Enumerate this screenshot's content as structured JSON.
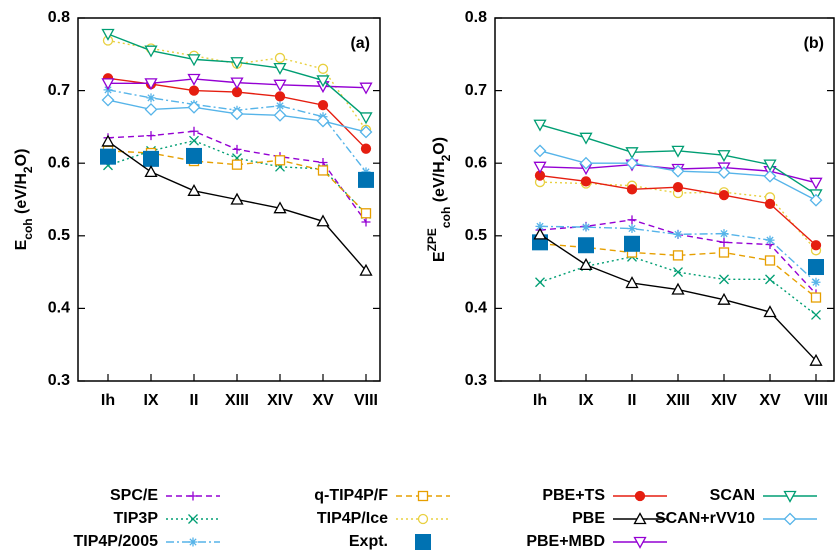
{
  "chart_data": [
    {
      "type": "line",
      "panel_label": "(a)",
      "categories": [
        "Ih",
        "IX",
        "II",
        "XIII",
        "XIV",
        "XV",
        "VIII"
      ],
      "ylabel_parts": [
        {
          "text": "E"
        },
        {
          "text": "coh",
          "sub": true
        },
        {
          "text": " (eV/H"
        },
        {
          "text": "2",
          "sub": true
        },
        {
          "text": "O)"
        }
      ],
      "ylim": [
        0.3,
        0.8
      ],
      "yticks": [
        0.3,
        0.4,
        0.5,
        0.6,
        0.7,
        0.8
      ],
      "series": [
        {
          "name": "SPC/E",
          "color": "#9400d3",
          "marker": "plus",
          "dash": "dashed",
          "values": [
            0.635,
            0.638,
            0.644,
            0.619,
            0.609,
            0.601,
            0.519
          ]
        },
        {
          "name": "TIP3P",
          "color": "#009e73",
          "marker": "x",
          "dash": "dotted",
          "values": [
            0.597,
            0.617,
            0.631,
            0.607,
            0.595,
            0.592,
            0.53
          ]
        },
        {
          "name": "TIP4P/2005",
          "color": "#56b4e9",
          "marker": "star",
          "dash": "dashdot",
          "values": [
            0.701,
            0.69,
            0.681,
            0.673,
            0.679,
            0.664,
            0.588
          ]
        },
        {
          "name": "q-TIP4P/F",
          "color": "#e69f00",
          "marker": "square-open",
          "dash": "dashed",
          "values": [
            0.617,
            0.614,
            0.603,
            0.598,
            0.604,
            0.59,
            0.531
          ]
        },
        {
          "name": "TIP4P/Ice",
          "color": "#e8d040",
          "marker": "circle-open",
          "dash": "dotted",
          "values": [
            0.769,
            0.758,
            0.748,
            0.737,
            0.745,
            0.73,
            0.646
          ]
        },
        {
          "name": "Expt.",
          "color": "#0072b2",
          "marker": "square-filled",
          "dash": null,
          "values": [
            0.609,
            0.606,
            0.61,
            null,
            null,
            null,
            0.577
          ]
        },
        {
          "name": "PBE+TS",
          "color": "#e51e10",
          "marker": "circle-filled",
          "dash": "solid",
          "values": [
            0.717,
            0.709,
            0.7,
            0.698,
            0.692,
            0.68,
            0.62
          ]
        },
        {
          "name": "PBE",
          "color": "#000000",
          "marker": "triangle-up-open",
          "dash": "solid",
          "values": [
            0.63,
            0.588,
            0.562,
            0.55,
            0.538,
            0.52,
            0.452
          ]
        },
        {
          "name": "PBE+MBD",
          "color": "#9400d3",
          "marker": "triangle-down-open",
          "dash": "solid",
          "values": [
            0.71,
            0.71,
            0.716,
            0.711,
            0.708,
            0.706,
            0.704
          ]
        },
        {
          "name": "SCAN",
          "color": "#009e73",
          "marker": "triangle-down-open",
          "dash": "solid",
          "values": [
            0.778,
            0.755,
            0.743,
            0.739,
            0.731,
            0.714,
            0.663
          ]
        },
        {
          "name": "SCAN+rVV10",
          "color": "#56b4e9",
          "marker": "diamond-open",
          "dash": "solid",
          "values": [
            0.687,
            0.674,
            0.677,
            0.668,
            0.666,
            0.658,
            0.643
          ]
        }
      ]
    },
    {
      "type": "line",
      "panel_label": "(b)",
      "categories": [
        "Ih",
        "IX",
        "II",
        "XIII",
        "XIV",
        "XV",
        "VIII"
      ],
      "ylabel_parts": [
        {
          "text": "E"
        },
        {
          "text": "ZPE",
          "sup": true
        },
        {
          "text": "coh",
          "sub": true
        },
        {
          "text": " (eV/H"
        },
        {
          "text": "2",
          "sub": true
        },
        {
          "text": "O)"
        }
      ],
      "ylim": [
        0.3,
        0.8
      ],
      "yticks": [
        0.3,
        0.4,
        0.5,
        0.6,
        0.7,
        0.8
      ],
      "series": [
        {
          "name": "SPC/E",
          "color": "#9400d3",
          "marker": "plus",
          "dash": "dashed",
          "values": [
            0.508,
            0.513,
            0.522,
            0.502,
            0.491,
            0.488,
            0.42
          ]
        },
        {
          "name": "TIP3P",
          "color": "#009e73",
          "marker": "x",
          "dash": "dotted",
          "values": [
            0.436,
            0.458,
            0.471,
            0.45,
            0.44,
            0.44,
            0.391
          ]
        },
        {
          "name": "TIP4P/2005",
          "color": "#56b4e9",
          "marker": "star",
          "dash": "dashdot",
          "values": [
            0.513,
            0.512,
            0.51,
            0.502,
            0.503,
            0.494,
            0.436
          ]
        },
        {
          "name": "q-TIP4P/F",
          "color": "#e69f00",
          "marker": "square-open",
          "dash": "dashed",
          "values": [
            0.489,
            0.484,
            0.477,
            0.473,
            0.477,
            0.466,
            0.415
          ]
        },
        {
          "name": "TIP4P/Ice",
          "color": "#e8d040",
          "marker": "circle-open",
          "dash": "dotted",
          "values": [
            0.574,
            0.572,
            0.569,
            0.559,
            0.56,
            0.553,
            0.48
          ]
        },
        {
          "name": "Expt.",
          "color": "#0072b2",
          "marker": "square-filled",
          "dash": null,
          "values": [
            0.491,
            0.487,
            0.489,
            null,
            null,
            null,
            0.457
          ]
        },
        {
          "name": "PBE+TS",
          "color": "#e51e10",
          "marker": "circle-filled",
          "dash": "solid",
          "values": [
            0.583,
            0.575,
            0.564,
            0.567,
            0.556,
            0.544,
            0.487
          ]
        },
        {
          "name": "PBE",
          "color": "#000000",
          "marker": "triangle-up-open",
          "dash": "solid",
          "values": [
            0.502,
            0.46,
            0.435,
            0.426,
            0.412,
            0.395,
            0.328
          ]
        },
        {
          "name": "PBE+MBD",
          "color": "#9400d3",
          "marker": "triangle-down-open",
          "dash": "solid",
          "values": [
            0.595,
            0.593,
            0.598,
            0.592,
            0.594,
            0.589,
            0.573
          ]
        },
        {
          "name": "SCAN",
          "color": "#009e73",
          "marker": "triangle-down-open",
          "dash": "solid",
          "values": [
            0.653,
            0.635,
            0.615,
            0.617,
            0.611,
            0.598,
            0.557
          ]
        },
        {
          "name": "SCAN+rVV10",
          "color": "#56b4e9",
          "marker": "diamond-open",
          "dash": "solid",
          "values": [
            0.617,
            0.6,
            0.6,
            0.589,
            0.587,
            0.582,
            0.549
          ]
        }
      ]
    }
  ]
}
